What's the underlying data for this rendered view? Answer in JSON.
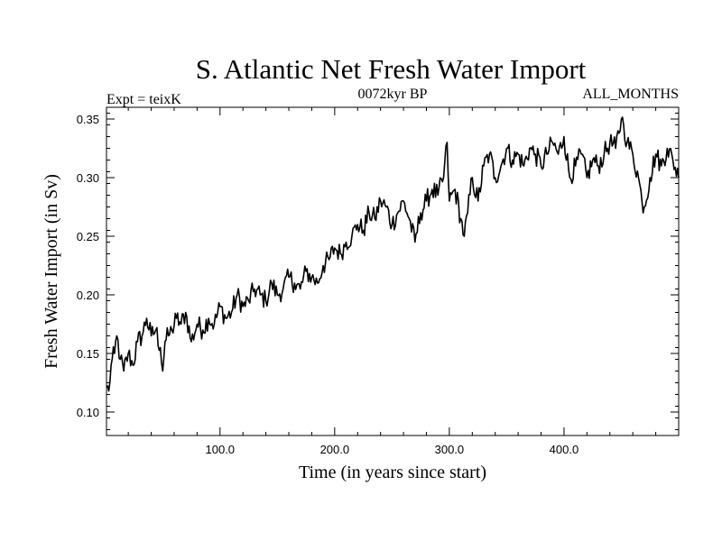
{
  "chart_data": {
    "type": "line",
    "title": "S. Atlantic Net Fresh Water Import",
    "subtitle_left": "Expt = teixK",
    "subtitle_center": "0072kyr BP",
    "subtitle_right": "ALL_MONTHS",
    "xlabel": "Time (in years since start)",
    "ylabel": "Fresh Water Import (in Sv)",
    "xlim": [
      1,
      500
    ],
    "ylim": [
      0.08,
      0.36
    ],
    "xticks": [
      {
        "value": 100,
        "label": "100.0"
      },
      {
        "value": 200,
        "label": "200.0"
      },
      {
        "value": 300,
        "label": "300.0"
      },
      {
        "value": 400,
        "label": "400.0"
      }
    ],
    "yticks": [
      {
        "value": 0.1,
        "label": "0.10"
      },
      {
        "value": 0.15,
        "label": "0.15"
      },
      {
        "value": 0.2,
        "label": "0.20"
      },
      {
        "value": 0.25,
        "label": "0.25"
      },
      {
        "value": 0.3,
        "label": "0.30"
      },
      {
        "value": 0.35,
        "label": "0.35"
      }
    ],
    "grid": false,
    "legend": "none",
    "color": "#000000",
    "series": [
      {
        "x": [
          1,
          3,
          5,
          8,
          10,
          13,
          16,
          20,
          24,
          28,
          32,
          36,
          40,
          44,
          48,
          50,
          52,
          55,
          58,
          62,
          66,
          70,
          75,
          80,
          85,
          90,
          95,
          100,
          105,
          110,
          115,
          120,
          125,
          130,
          135,
          140,
          145,
          150,
          155,
          160,
          165,
          170,
          175,
          180,
          185,
          190,
          195,
          200,
          205,
          210,
          215,
          220,
          225,
          230,
          235,
          240,
          245,
          250,
          255,
          260,
          265,
          270,
          275,
          280,
          285,
          290,
          295,
          298,
          300,
          305,
          310,
          313,
          316,
          320,
          325,
          330,
          335,
          340,
          345,
          350,
          355,
          360,
          365,
          370,
          375,
          380,
          385,
          390,
          395,
          400,
          405,
          410,
          415,
          420,
          425,
          430,
          435,
          440,
          445,
          450,
          452,
          455,
          460,
          465,
          468,
          470,
          475,
          480,
          485,
          490,
          495,
          500
        ],
        "y": [
          0.121,
          0.118,
          0.14,
          0.15,
          0.165,
          0.145,
          0.135,
          0.15,
          0.14,
          0.16,
          0.165,
          0.18,
          0.165,
          0.17,
          0.155,
          0.135,
          0.16,
          0.165,
          0.17,
          0.18,
          0.175,
          0.185,
          0.16,
          0.175,
          0.17,
          0.18,
          0.175,
          0.19,
          0.18,
          0.185,
          0.2,
          0.19,
          0.195,
          0.205,
          0.2,
          0.195,
          0.21,
          0.2,
          0.205,
          0.215,
          0.21,
          0.205,
          0.22,
          0.215,
          0.21,
          0.225,
          0.23,
          0.24,
          0.235,
          0.245,
          0.25,
          0.26,
          0.255,
          0.27,
          0.265,
          0.28,
          0.275,
          0.26,
          0.27,
          0.28,
          0.265,
          0.245,
          0.27,
          0.28,
          0.29,
          0.285,
          0.3,
          0.33,
          0.28,
          0.29,
          0.265,
          0.25,
          0.27,
          0.3,
          0.28,
          0.31,
          0.32,
          0.3,
          0.31,
          0.325,
          0.315,
          0.32,
          0.31,
          0.325,
          0.32,
          0.31,
          0.32,
          0.33,
          0.32,
          0.335,
          0.3,
          0.31,
          0.32,
          0.3,
          0.315,
          0.31,
          0.32,
          0.33,
          0.325,
          0.35,
          0.345,
          0.33,
          0.32,
          0.3,
          0.28,
          0.275,
          0.3,
          0.32,
          0.31,
          0.325,
          0.315,
          0.3
        ]
      }
    ]
  }
}
